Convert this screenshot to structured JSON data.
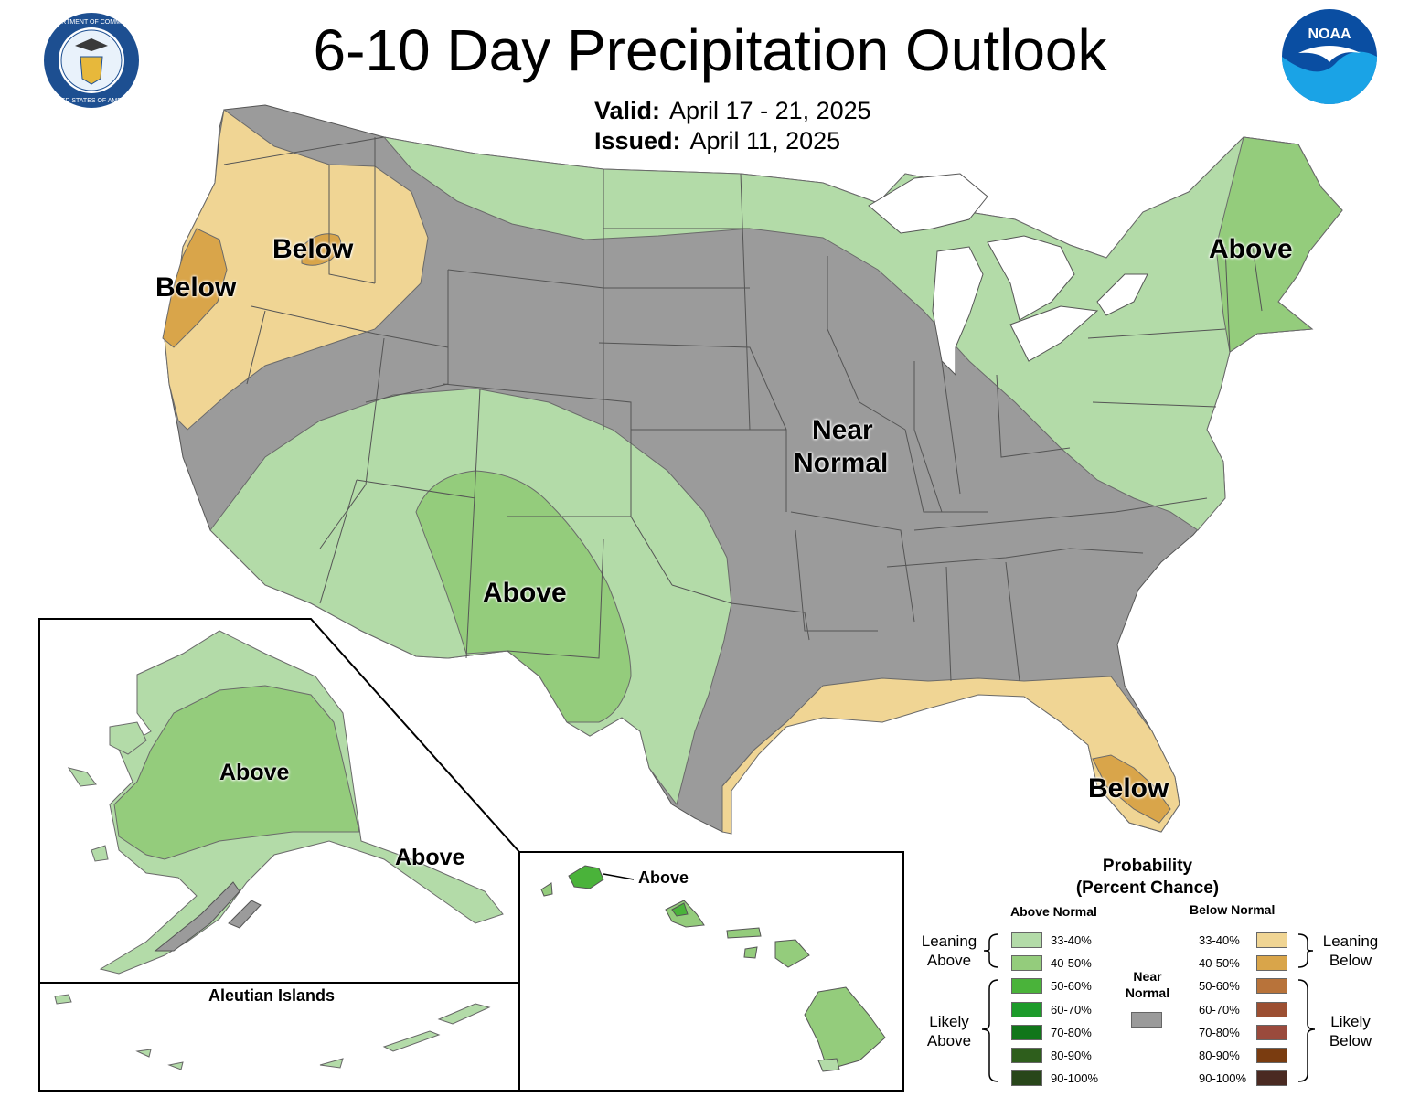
{
  "title": "6-10 Day Precipitation Outlook",
  "valid": {
    "label": "Valid:",
    "value": "April 17 - 21, 2025"
  },
  "issued": {
    "label": "Issued:",
    "value": "April 11, 2025"
  },
  "colors": {
    "near_normal": "#9b9b9b",
    "above_33_40": "#b3dba8",
    "above_40_50": "#94cc7c",
    "above_50_60": "#4ab33a",
    "above_60_70": "#1d9b2a",
    "above_70_80": "#11761a",
    "above_80_90": "#2e5e1c",
    "above_90_100": "#28461a",
    "below_33_40": "#f0d594",
    "below_40_50": "#d9a54a",
    "below_50_60": "#b8733a",
    "below_60_70": "#9c4f32",
    "below_70_80": "#9a4a3c",
    "below_80_90": "#7a3c10",
    "below_90_100": "#4a2a22"
  },
  "map_labels": {
    "northwest_below": "Below",
    "westcoast_below": "Below",
    "northeast_above": "Above",
    "southwest_above": "Above",
    "central_near": "Near",
    "central_normal": "Normal",
    "florida_below": "Below",
    "alaska_above": "Above",
    "alaska_se_above": "Above",
    "hawaii_above": "Above",
    "aleutian_title": "Aleutian Islands"
  },
  "legend": {
    "title_line1": "Probability",
    "title_line2": "(Percent Chance)",
    "above_header": "Above Normal",
    "below_header": "Below Normal",
    "near_line1": "Near",
    "near_line2": "Normal",
    "leaning_above_1": "Leaning",
    "leaning_above_2": "Above",
    "likely_above_1": "Likely",
    "likely_above_2": "Above",
    "leaning_below_1": "Leaning",
    "leaning_below_2": "Below",
    "likely_below_1": "Likely",
    "likely_below_2": "Below",
    "above_bins": [
      "33-40%",
      "40-50%",
      "50-60%",
      "60-70%",
      "70-80%",
      "80-90%",
      "90-100%"
    ],
    "below_bins": [
      "33-40%",
      "40-50%",
      "50-60%",
      "60-70%",
      "70-80%",
      "80-90%",
      "90-100%"
    ]
  },
  "logos": {
    "noaa_text": "NOAA",
    "doc_ring_top": "DEPARTMENT OF COMMERCE",
    "doc_ring_bottom": "UNITED STATES OF AMERICA"
  }
}
